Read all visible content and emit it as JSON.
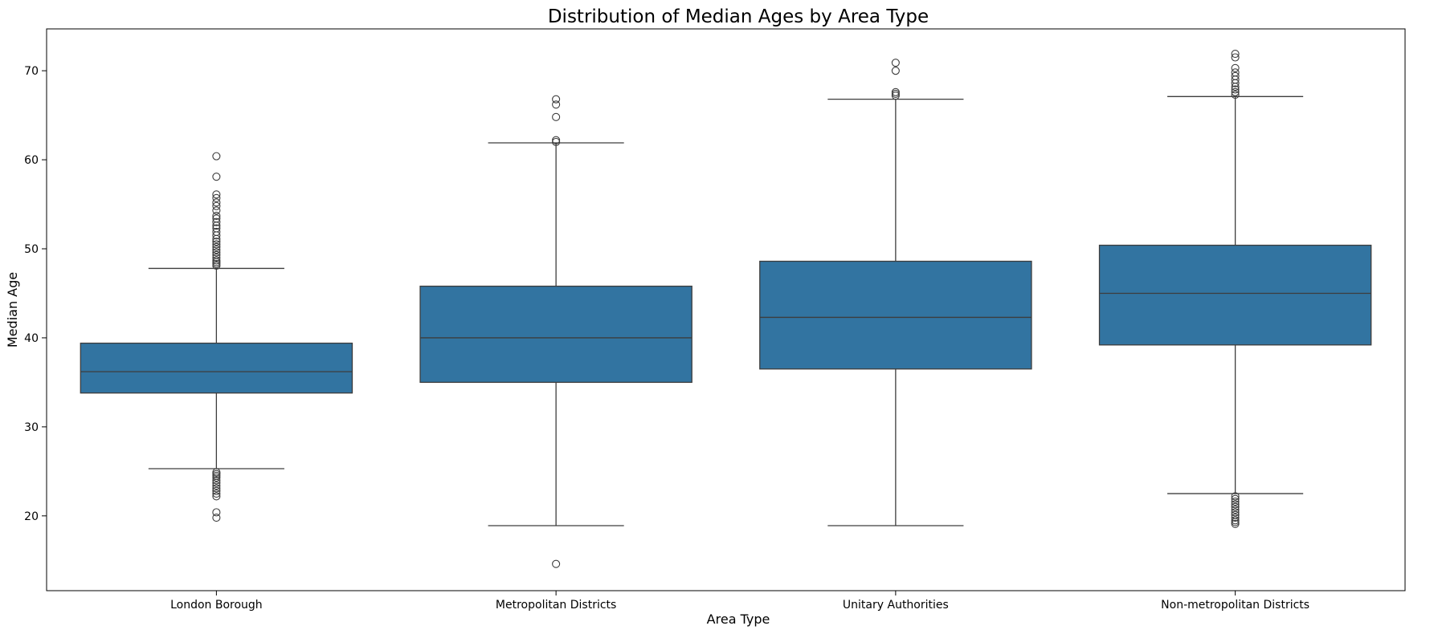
{
  "chart_data": {
    "type": "box",
    "title": "Distribution of Median Ages by Area Type",
    "xlabel": "Area Type",
    "ylabel": "Median Age",
    "ylim": [
      11.6,
      74.7
    ],
    "yticks": [
      20,
      30,
      40,
      50,
      60,
      70
    ],
    "grid": false,
    "legend": "none",
    "box_color": "#3274a1",
    "line_color": "#3d3d3d",
    "categories": [
      "London Borough",
      "Metropolitan Districts",
      "Unitary Authorities",
      "Non-metropolitan Districts"
    ],
    "boxes": [
      {
        "category": "London Borough",
        "whisker_low": 25.3,
        "q1": 33.8,
        "median": 36.2,
        "q3": 39.4,
        "whisker_high": 47.8,
        "outliers": [
          60.4,
          58.1,
          56.1,
          55.7,
          55.2,
          54.8,
          54.3,
          53.7,
          53.4,
          53.0,
          52.6,
          52.3,
          51.9,
          51.5,
          51.1,
          50.8,
          50.5,
          50.2,
          49.9,
          49.6,
          49.3,
          49.0,
          48.7,
          48.5,
          48.3,
          48.1,
          24.9,
          24.7,
          24.5,
          24.3,
          24.0,
          23.7,
          23.4,
          23.1,
          22.8,
          22.5,
          22.2,
          20.4,
          19.8
        ]
      },
      {
        "category": "Metropolitan Districts",
        "whisker_low": 18.9,
        "q1": 35.0,
        "median": 40.0,
        "q3": 45.8,
        "whisker_high": 61.9,
        "outliers": [
          66.8,
          66.2,
          64.8,
          62.2,
          62.0,
          14.6
        ]
      },
      {
        "category": "Unitary Authorities",
        "whisker_low": 18.9,
        "q1": 36.5,
        "median": 42.3,
        "q3": 48.6,
        "whisker_high": 66.8,
        "outliers": [
          70.9,
          70.0,
          67.6,
          67.4,
          67.2
        ]
      },
      {
        "category": "Non-metropolitan Districts",
        "whisker_low": 22.5,
        "q1": 39.2,
        "median": 45.0,
        "q3": 50.4,
        "whisker_high": 67.1,
        "outliers": [
          71.9,
          71.5,
          70.3,
          69.8,
          69.4,
          69.0,
          68.6,
          68.2,
          67.9,
          67.6,
          67.3,
          22.2,
          21.9,
          21.6,
          21.3,
          21.0,
          20.7,
          20.4,
          20.1,
          19.8,
          19.5,
          19.3,
          19.1
        ]
      }
    ]
  }
}
